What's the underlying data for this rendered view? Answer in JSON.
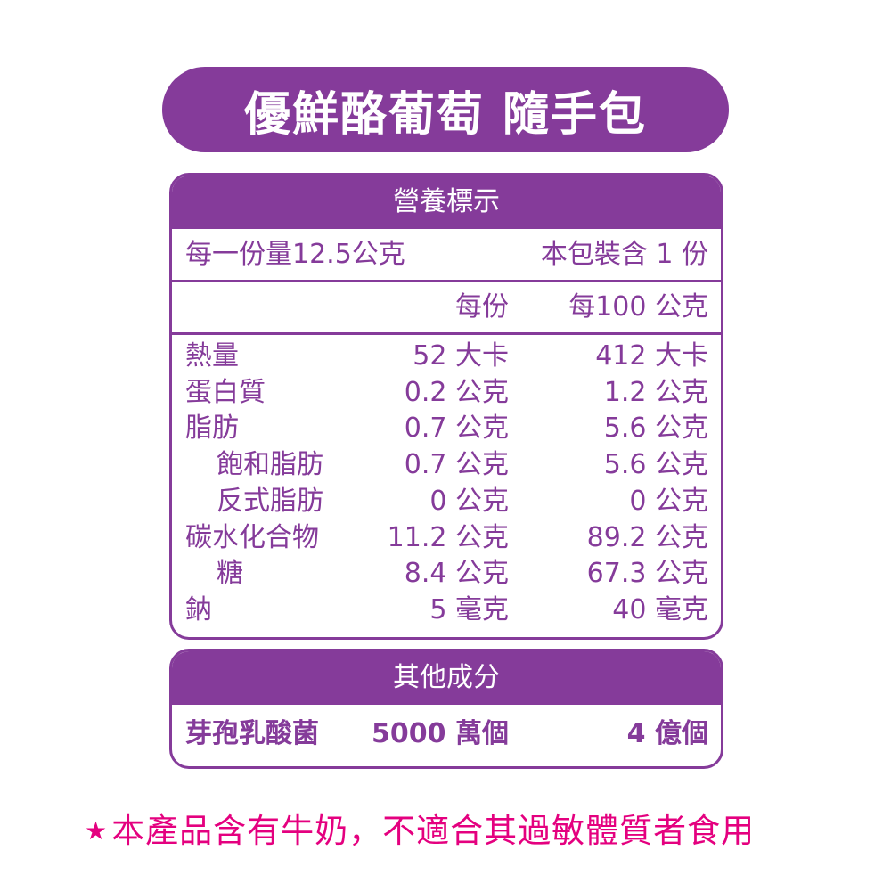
{
  "title": "優鮮酪葡萄 隨手包",
  "nutrition": {
    "header": "營養標示",
    "serving_size": "每一份量12.5公克",
    "servings_per_pack": "本包裝含 1 份",
    "col_per_serving": "每份",
    "col_per_100g": "每100 公克",
    "rows": [
      {
        "name": "熱量",
        "indent": false,
        "per_serving": "52 大卡",
        "per_100g": "412 大卡"
      },
      {
        "name": "蛋白質",
        "indent": false,
        "per_serving": "0.2 公克",
        "per_100g": "1.2 公克"
      },
      {
        "name": "脂肪",
        "indent": false,
        "per_serving": "0.7 公克",
        "per_100g": "5.6 公克"
      },
      {
        "name": "飽和脂肪",
        "indent": true,
        "per_serving": "0.7 公克",
        "per_100g": "5.6 公克"
      },
      {
        "name": "反式脂肪",
        "indent": true,
        "per_serving": "0 公克",
        "per_100g": "0 公克"
      },
      {
        "name": "碳水化合物",
        "indent": false,
        "per_serving": "11.2 公克",
        "per_100g": "89.2 公克"
      },
      {
        "name": "糖",
        "indent": true,
        "per_serving": "8.4 公克",
        "per_100g": "67.3 公克"
      },
      {
        "name": "鈉",
        "indent": false,
        "per_serving": "5 毫克",
        "per_100g": "40 毫克"
      }
    ]
  },
  "other": {
    "header": "其他成分",
    "name": "芽孢乳酸菌",
    "per_serving": "5000 萬個",
    "per_100g": "4 億個"
  },
  "footer": {
    "star": "★",
    "text": "本產品含有牛奶，不適合其過敏體質者食用"
  },
  "colors": {
    "brand_purple": "#853b9a",
    "warning_pink": "#e4007f"
  }
}
